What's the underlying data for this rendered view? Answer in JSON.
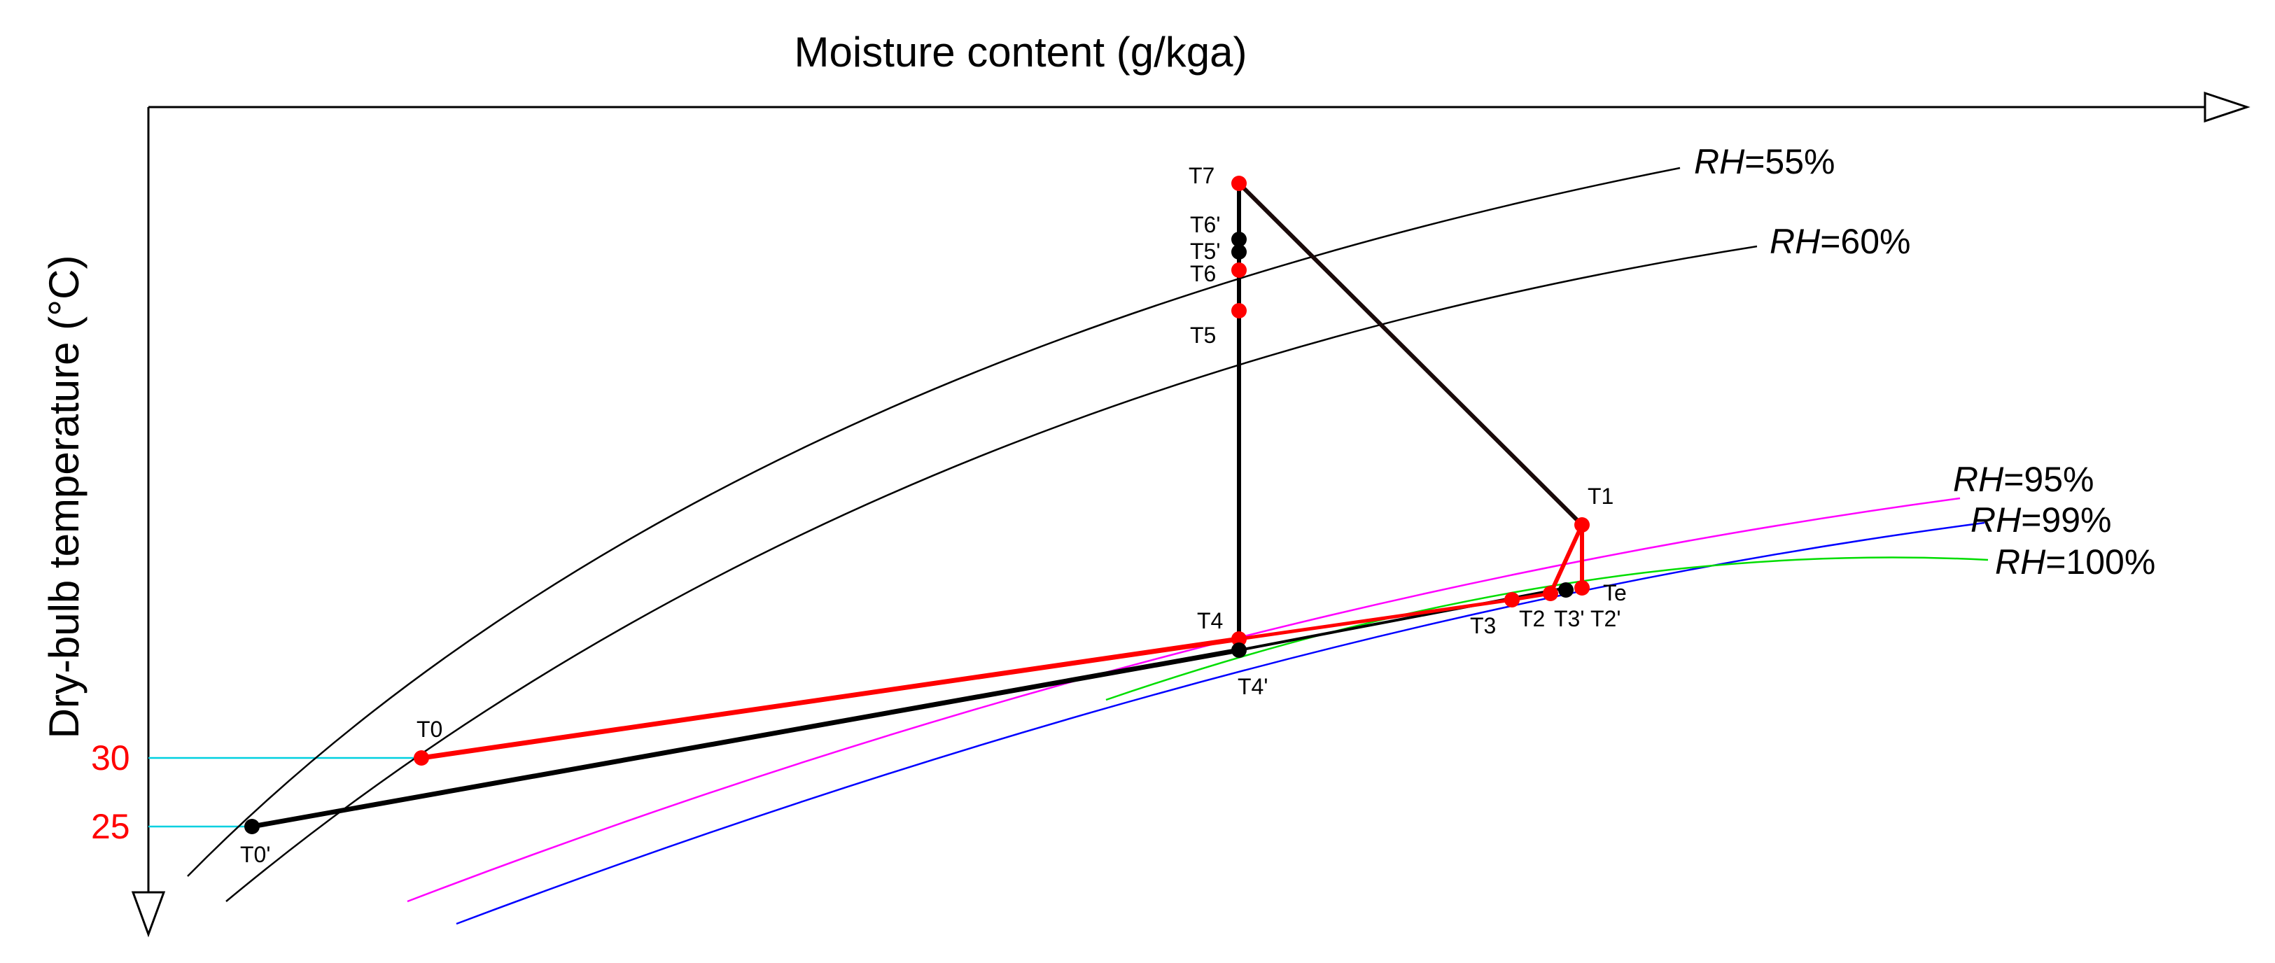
{
  "axes": {
    "x_title": "Moisture content (g/kga)",
    "y_title": "Dry-bulb temperature (°C)",
    "y_ticks": [
      "30",
      "25"
    ],
    "tick_color": "#ff0000",
    "guide_color": "#00d0e0"
  },
  "curves": [
    {
      "id": "rh55",
      "label_var": "RH",
      "label_val": "=55%",
      "color": "#000000"
    },
    {
      "id": "rh60",
      "label_var": "RH",
      "label_val": "=60%",
      "color": "#000000"
    },
    {
      "id": "rh95",
      "label_var": "RH",
      "label_val": "=95%",
      "color": "#ff00ff"
    },
    {
      "id": "rh99",
      "label_var": "RH",
      "label_val": "=99%",
      "color": "#0000ff"
    },
    {
      "id": "rh100",
      "label_var": "RH",
      "label_val": "=100%",
      "color": "#00dd00"
    }
  ],
  "points": [
    {
      "id": "T0",
      "label": "T0",
      "color": "#ff0000"
    },
    {
      "id": "T0p",
      "label": "T0'",
      "color": "#000000"
    },
    {
      "id": "T1",
      "label": "T1",
      "color": "#ff0000"
    },
    {
      "id": "Te",
      "label": "Te",
      "color": "#000000"
    },
    {
      "id": "T2",
      "label": "T2",
      "color": "#ff0000"
    },
    {
      "id": "T2p",
      "label": "T2'",
      "color": "#ff0000"
    },
    {
      "id": "T3",
      "label": "T3",
      "color": "#ff0000"
    },
    {
      "id": "T3p",
      "label": "T3'",
      "color": "#000000"
    },
    {
      "id": "T4",
      "label": "T4",
      "color": "#ff0000"
    },
    {
      "id": "T4p",
      "label": "T4'",
      "color": "#000000"
    },
    {
      "id": "T5",
      "label": "T5",
      "color": "#ff0000"
    },
    {
      "id": "T5p",
      "label": "T5'",
      "color": "#000000"
    },
    {
      "id": "T6",
      "label": "T6",
      "color": "#ff0000"
    },
    {
      "id": "T6p",
      "label": "T6'",
      "color": "#000000"
    },
    {
      "id": "T7",
      "label": "T7",
      "color": "#ff0000"
    }
  ],
  "process_colors": {
    "red": "#ff0000",
    "black": "#000000",
    "dark": "#1a0a0a"
  }
}
